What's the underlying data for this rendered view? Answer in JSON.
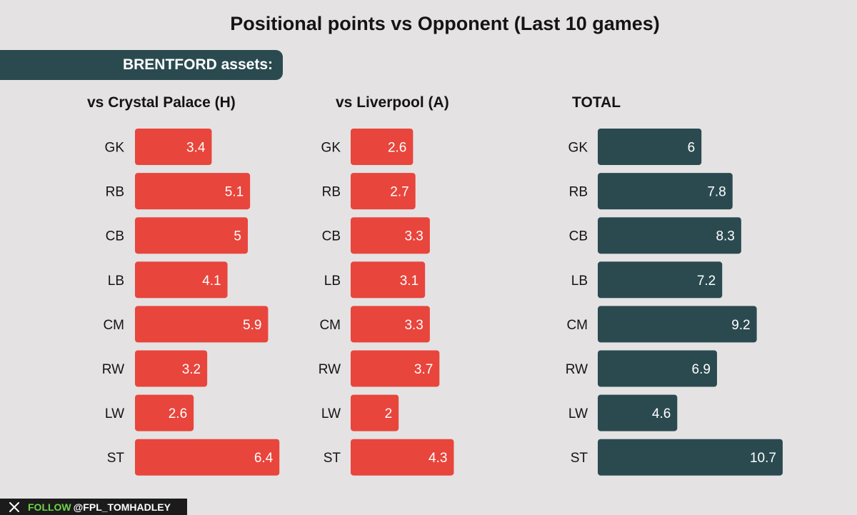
{
  "title": "Positional points vs Opponent (Last 10 games)",
  "banner": "BRENTFORD assets:",
  "footer": {
    "icon": "x-logo-icon",
    "follow": "FOLLOW",
    "handle": "@FPL_TOMHADLEY"
  },
  "colors": {
    "red": "#e8453c",
    "teal": "#2a4a50",
    "background": "#e4e2e3"
  },
  "chart_data": [
    {
      "type": "bar",
      "orientation": "horizontal",
      "title": "vs Crystal Palace (H)",
      "categories": [
        "GK",
        "RB",
        "CB",
        "LB",
        "CM",
        "RW",
        "LW",
        "ST"
      ],
      "values": [
        3.4,
        5.1,
        5,
        4.1,
        5.9,
        3.2,
        2.6,
        6.4
      ],
      "value_labels": [
        "3.4",
        "5.1",
        "5",
        "4.1",
        "5.9",
        "3.2",
        "2.6",
        "6.4"
      ],
      "color": "#e8453c"
    },
    {
      "type": "bar",
      "orientation": "horizontal",
      "title": "vs Liverpool (A)",
      "categories": [
        "GK",
        "RB",
        "CB",
        "LB",
        "CM",
        "RW",
        "LW",
        "ST"
      ],
      "values": [
        2.6,
        2.7,
        3.3,
        3.1,
        3.3,
        3.7,
        2,
        4.3
      ],
      "value_labels": [
        "2.6",
        "2.7",
        "3.3",
        "3.1",
        "3.3",
        "3.7",
        "2",
        "4.3"
      ],
      "color": "#e8453c"
    },
    {
      "type": "bar",
      "orientation": "horizontal",
      "title": "TOTAL",
      "categories": [
        "GK",
        "RB",
        "CB",
        "LB",
        "CM",
        "RW",
        "LW",
        "ST"
      ],
      "values": [
        6,
        7.8,
        8.3,
        7.2,
        9.2,
        6.9,
        4.6,
        10.7
      ],
      "value_labels": [
        "6",
        "7.8",
        "8.3",
        "7.2",
        "9.2",
        "6.9",
        "4.6",
        "10.7"
      ],
      "color": "#2a4a50"
    }
  ]
}
